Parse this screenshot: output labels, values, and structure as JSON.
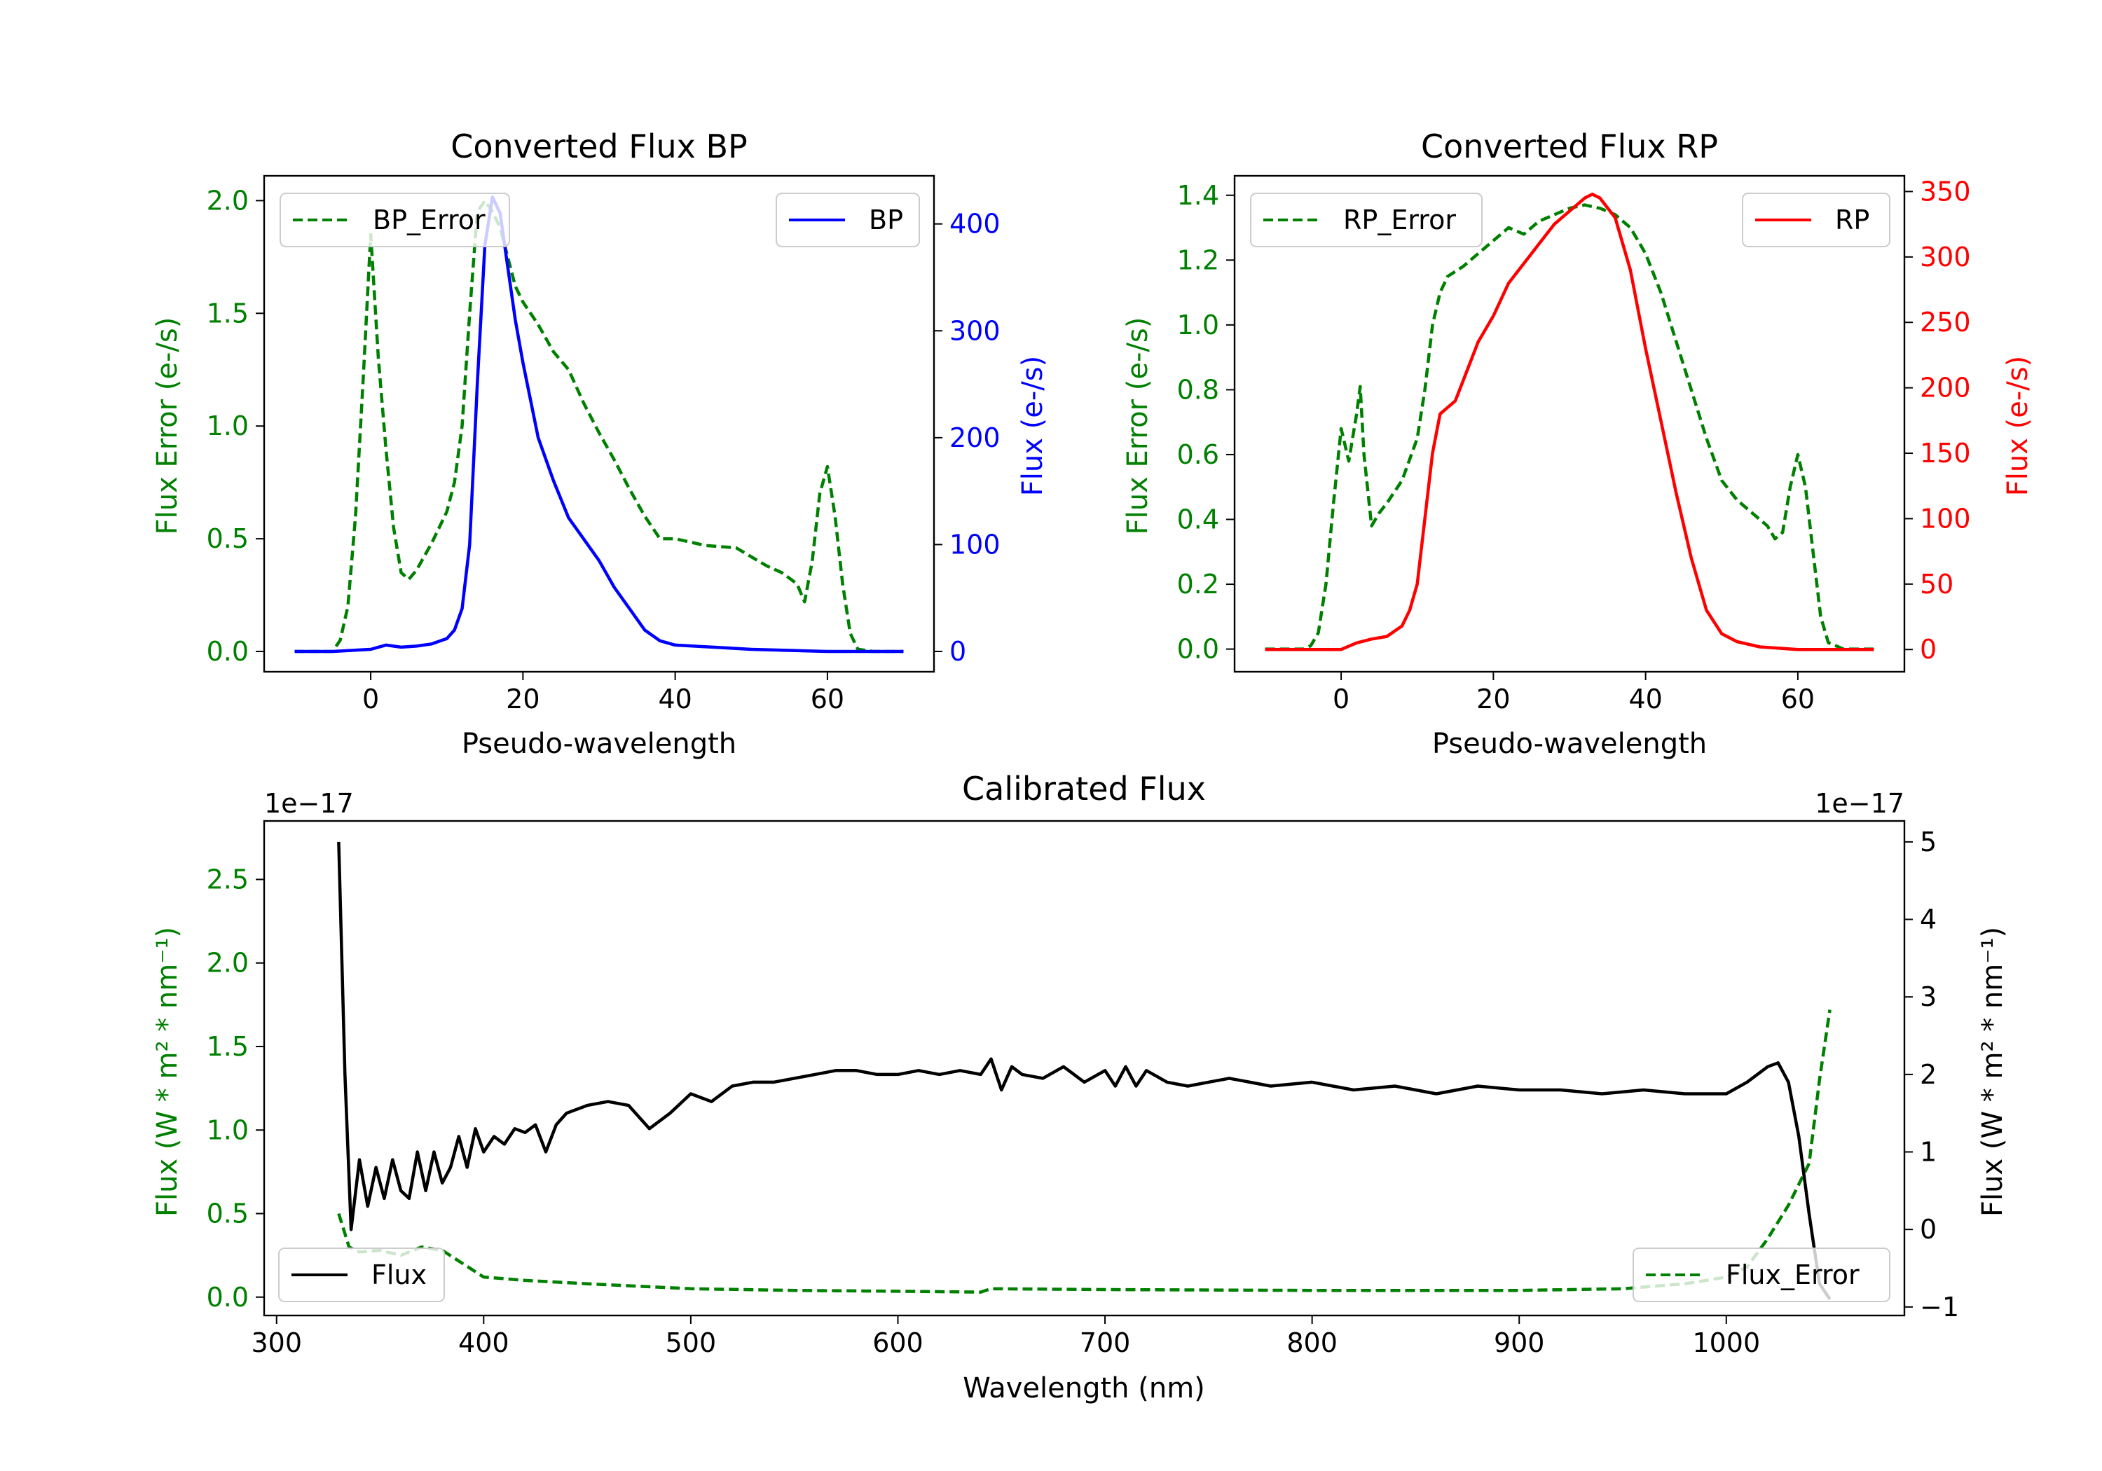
{
  "chart_data": [
    {
      "id": "bp",
      "type": "line",
      "title": "Converted Flux BP",
      "xlabel": "Pseudo-wavelength",
      "ylabel_left": "Flux Error (e-/s)",
      "ylabel_right": "Flux (e-/s)",
      "xlim": [
        -14,
        74
      ],
      "ylim_left": [
        -0.09,
        2.11
      ],
      "ylim_right": [
        -19,
        445
      ],
      "xticks": [
        0,
        20,
        40,
        60
      ],
      "yticks_left": [
        0.0,
        0.5,
        1.0,
        1.5,
        2.0
      ],
      "ytick_labels_left": [
        "0.0",
        "0.5",
        "1.0",
        "1.5",
        "2.0"
      ],
      "yticks_right": [
        0,
        100,
        200,
        300,
        400
      ],
      "ytick_labels_right": [
        "0",
        "100",
        "200",
        "300",
        "400"
      ],
      "left_color": "#008000",
      "right_color": "#0000ff",
      "series_left": {
        "name": "BP_Error",
        "style": "dashed",
        "x": [
          -10,
          -5,
          -4,
          -3,
          -2,
          -1,
          0,
          1,
          2,
          3,
          4,
          5,
          6,
          7,
          8,
          9,
          10,
          11,
          12,
          13,
          14,
          15,
          16,
          17,
          18,
          19,
          20,
          22,
          24,
          26,
          28,
          30,
          32,
          34,
          36,
          38,
          40,
          44,
          48,
          50,
          52,
          54,
          56,
          57,
          58,
          59,
          60,
          61,
          62,
          63,
          64,
          66,
          70
        ],
        "values": [
          0,
          0,
          0.05,
          0.2,
          0.6,
          1.2,
          1.85,
          1.3,
          0.9,
          0.55,
          0.35,
          0.32,
          0.36,
          0.42,
          0.48,
          0.55,
          0.62,
          0.75,
          1.0,
          1.5,
          1.95,
          2.0,
          1.95,
          1.88,
          1.75,
          1.62,
          1.55,
          1.45,
          1.33,
          1.25,
          1.1,
          0.97,
          0.85,
          0.72,
          0.6,
          0.5,
          0.5,
          0.47,
          0.46,
          0.42,
          0.38,
          0.35,
          0.3,
          0.22,
          0.4,
          0.7,
          0.82,
          0.6,
          0.3,
          0.08,
          0.01,
          0,
          0
        ]
      },
      "series_right": {
        "name": "BP",
        "style": "solid",
        "x": [
          -10,
          -5,
          0,
          2,
          4,
          6,
          8,
          10,
          11,
          12,
          13,
          14,
          15,
          16,
          17,
          18,
          19,
          20,
          22,
          24,
          26,
          28,
          30,
          32,
          34,
          36,
          38,
          40,
          45,
          50,
          55,
          60,
          65,
          70
        ],
        "values": [
          0,
          0,
          2,
          6,
          4,
          5,
          7,
          12,
          20,
          40,
          100,
          250,
          380,
          425,
          410,
          360,
          310,
          270,
          200,
          160,
          125,
          105,
          85,
          60,
          40,
          20,
          10,
          6,
          4,
          2,
          1,
          0,
          0,
          0
        ]
      },
      "legend_left": "upper left",
      "legend_right": "upper right"
    },
    {
      "id": "rp",
      "type": "line",
      "title": "Converted Flux RP",
      "xlabel": "Pseudo-wavelength",
      "ylabel_left": "Flux Error (e-/s)",
      "ylabel_right": "Flux (e-/s)",
      "xlim": [
        -14,
        74
      ],
      "ylim_left": [
        -0.07,
        1.46
      ],
      "ylim_right": [
        -17,
        362
      ],
      "xticks": [
        0,
        20,
        40,
        60
      ],
      "yticks_left": [
        0.0,
        0.2,
        0.4,
        0.6,
        0.8,
        1.0,
        1.2,
        1.4
      ],
      "ytick_labels_left": [
        "0.0",
        "0.2",
        "0.4",
        "0.6",
        "0.8",
        "1.0",
        "1.2",
        "1.4"
      ],
      "yticks_right": [
        0,
        50,
        100,
        150,
        200,
        250,
        300,
        350
      ],
      "ytick_labels_right": [
        "0",
        "50",
        "100",
        "150",
        "200",
        "250",
        "300",
        "350"
      ],
      "left_color": "#008000",
      "right_color": "#ff0000",
      "series_left": {
        "name": "RP_Error",
        "style": "dashed",
        "x": [
          -10,
          -5,
          -4,
          -3,
          -2,
          -1,
          0,
          1,
          2,
          2.5,
          3,
          4,
          5,
          6,
          8,
          10,
          11,
          12,
          13,
          14,
          16,
          18,
          20,
          22,
          24,
          26,
          28,
          30,
          32,
          34,
          36,
          38,
          40,
          42,
          44,
          46,
          48,
          50,
          52,
          54,
          56,
          57,
          58,
          59,
          60,
          61,
          62,
          63,
          64,
          66,
          70
        ],
        "values": [
          0,
          0,
          0.01,
          0.05,
          0.2,
          0.45,
          0.68,
          0.58,
          0.72,
          0.81,
          0.6,
          0.38,
          0.42,
          0.45,
          0.52,
          0.65,
          0.8,
          1.0,
          1.1,
          1.15,
          1.18,
          1.22,
          1.26,
          1.3,
          1.28,
          1.32,
          1.34,
          1.36,
          1.37,
          1.36,
          1.34,
          1.3,
          1.22,
          1.1,
          0.95,
          0.8,
          0.65,
          0.52,
          0.46,
          0.42,
          0.38,
          0.34,
          0.36,
          0.5,
          0.6,
          0.5,
          0.3,
          0.1,
          0.02,
          0,
          0
        ]
      },
      "series_right": {
        "name": "RP",
        "style": "solid",
        "x": [
          -10,
          -5,
          0,
          2,
          4,
          6,
          8,
          9,
          10,
          11,
          12,
          13,
          14,
          15,
          16,
          18,
          20,
          22,
          24,
          26,
          28,
          30,
          32,
          33,
          34,
          36,
          38,
          40,
          42,
          44,
          46,
          48,
          50,
          52,
          55,
          60,
          65,
          70
        ],
        "values": [
          0,
          0,
          0,
          5,
          8,
          10,
          18,
          30,
          50,
          100,
          150,
          180,
          185,
          190,
          205,
          235,
          255,
          280,
          295,
          310,
          325,
          335,
          345,
          348,
          345,
          330,
          290,
          230,
          175,
          120,
          70,
          30,
          12,
          6,
          2,
          0,
          0,
          0
        ]
      },
      "legend_left": "upper left",
      "legend_right": "upper right"
    },
    {
      "id": "cal",
      "type": "line",
      "title": "Calibrated Flux",
      "xlabel": "Wavelength (nm)",
      "ylabel_left": "Flux (W * m² * nm⁻¹)",
      "ylabel_right": "Flux (W * m² * nm⁻¹)",
      "offset_left": "1e−17",
      "offset_right": "1e−17",
      "xlim": [
        294,
        1086
      ],
      "ylim_left": [
        -0.11,
        2.85
      ],
      "ylim_right": [
        -1.11,
        5.27
      ],
      "xticks": [
        300,
        400,
        500,
        600,
        700,
        800,
        900,
        1000
      ],
      "yticks_left": [
        0.0,
        0.5,
        1.0,
        1.5,
        2.0,
        2.5
      ],
      "ytick_labels_left": [
        "0.0",
        "0.5",
        "1.0",
        "1.5",
        "2.0",
        "2.5"
      ],
      "yticks_right": [
        -1,
        0,
        1,
        2,
        3,
        4,
        5
      ],
      "ytick_labels_right": [
        "−1",
        "0",
        "1",
        "2",
        "3",
        "4",
        "5"
      ],
      "left_color": "#008000",
      "right_color": "#000000",
      "series_left": {
        "name": "Flux_Error",
        "style": "dashed",
        "x": [
          330,
          335,
          340,
          350,
          360,
          370,
          380,
          390,
          400,
          420,
          450,
          500,
          550,
          600,
          640,
          645,
          700,
          800,
          900,
          950,
          980,
          1000,
          1010,
          1020,
          1030,
          1040,
          1045,
          1050
        ],
        "values": [
          0.5,
          0.3,
          0.27,
          0.28,
          0.25,
          0.3,
          0.28,
          0.2,
          0.12,
          0.1,
          0.08,
          0.05,
          0.04,
          0.035,
          0.03,
          0.05,
          0.045,
          0.04,
          0.04,
          0.05,
          0.08,
          0.12,
          0.18,
          0.35,
          0.55,
          0.8,
          1.3,
          1.72
        ]
      },
      "series_right": {
        "name": "Flux",
        "style": "solid",
        "x": [
          330,
          333,
          336,
          340,
          344,
          348,
          352,
          356,
          360,
          364,
          368,
          372,
          376,
          380,
          384,
          388,
          392,
          396,
          400,
          405,
          410,
          415,
          420,
          425,
          430,
          435,
          440,
          450,
          460,
          470,
          480,
          490,
          500,
          510,
          520,
          530,
          540,
          550,
          560,
          570,
          580,
          590,
          600,
          610,
          620,
          630,
          640,
          645,
          650,
          655,
          660,
          670,
          680,
          690,
          700,
          705,
          710,
          715,
          720,
          730,
          740,
          750,
          760,
          780,
          800,
          820,
          840,
          860,
          880,
          900,
          920,
          940,
          960,
          980,
          1000,
          1010,
          1020,
          1025,
          1030,
          1035,
          1040,
          1045,
          1050
        ],
        "values": [
          5.0,
          2.0,
          0.0,
          0.9,
          0.3,
          0.8,
          0.4,
          0.9,
          0.5,
          0.4,
          1.0,
          0.5,
          1.0,
          0.6,
          0.8,
          1.2,
          0.8,
          1.3,
          1.0,
          1.2,
          1.1,
          1.3,
          1.25,
          1.35,
          1.0,
          1.35,
          1.5,
          1.6,
          1.65,
          1.6,
          1.3,
          1.5,
          1.75,
          1.65,
          1.85,
          1.9,
          1.9,
          1.95,
          2.0,
          2.05,
          2.05,
          2.0,
          2.0,
          2.05,
          2.0,
          2.05,
          2.0,
          2.2,
          1.8,
          2.1,
          2.0,
          1.95,
          2.1,
          1.9,
          2.05,
          1.85,
          2.1,
          1.85,
          2.05,
          1.9,
          1.85,
          1.9,
          1.95,
          1.85,
          1.9,
          1.8,
          1.85,
          1.75,
          1.85,
          1.8,
          1.8,
          1.75,
          1.8,
          1.75,
          1.75,
          1.9,
          2.1,
          2.15,
          1.9,
          1.2,
          0.2,
          -0.7,
          -0.9
        ]
      },
      "legend_left": "lower right",
      "legend_right": "lower left"
    }
  ]
}
